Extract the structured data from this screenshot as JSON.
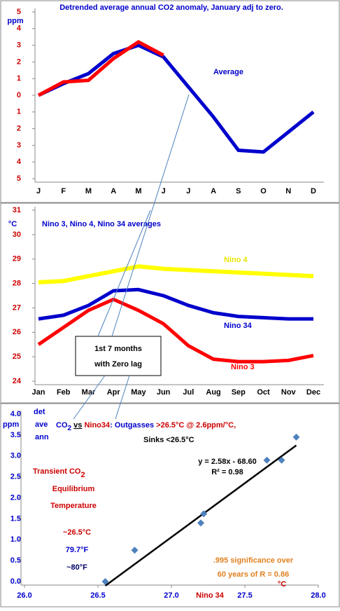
{
  "chart_data": [
    {
      "type": "line",
      "title": "Detrended average annual CO2 anomaly, January adj to zero.",
      "y_label": "ppm",
      "categories": [
        "J",
        "F",
        "M",
        "A",
        "M",
        "J",
        "J",
        "A",
        "S",
        "O",
        "N",
        "D"
      ],
      "ylim": [
        -5,
        5
      ],
      "yticks": [
        {
          "value": -5,
          "label": "5"
        },
        {
          "value": -4,
          "label": "4"
        },
        {
          "value": -3,
          "label": "3"
        },
        {
          "value": -2,
          "label": "2"
        },
        {
          "value": -1,
          "label": "1"
        },
        0,
        1,
        2,
        3,
        4,
        5
      ],
      "series": [
        {
          "name": "Average",
          "color": "#0000cc",
          "values": [
            0,
            0.7,
            1.3,
            2.5,
            3.0,
            2.3,
            0.5,
            -1.3,
            -3.3,
            -3.4,
            -2.2,
            -1.0
          ]
        },
        {
          "color": "#ff0000",
          "values": [
            0,
            0.8,
            0.9,
            2.2,
            3.2,
            2.4,
            null,
            null,
            null,
            null,
            null,
            null
          ]
        }
      ]
    },
    {
      "type": "line",
      "title": "Nino 3, Nino 4, Nino 34 averages",
      "y_label": "°C",
      "categories": [
        "Jan",
        "Feb",
        "Mar",
        "Apr",
        "May",
        "Jun",
        "Jul",
        "Aug",
        "Sep",
        "Oct",
        "Nov",
        "Dec"
      ],
      "ylim": [
        24,
        31
      ],
      "yticks": [
        24,
        25,
        26,
        27,
        28,
        29,
        30,
        31
      ],
      "series": [
        {
          "name": "Nino 4",
          "color": "#ffff00",
          "values": [
            28.05,
            28.1,
            28.3,
            28.5,
            28.7,
            28.6,
            28.55,
            28.5,
            28.45,
            28.4,
            28.35,
            28.3
          ]
        },
        {
          "name": "Nino 34",
          "color": "#0000cc",
          "values": [
            26.55,
            26.7,
            27.1,
            27.7,
            27.75,
            27.5,
            27.1,
            26.8,
            26.65,
            26.6,
            26.55,
            26.55
          ]
        },
        {
          "name": "Nino 3",
          "color": "#ff0000",
          "values": [
            25.5,
            26.2,
            26.9,
            27.35,
            26.9,
            26.35,
            25.45,
            24.9,
            24.8,
            24.8,
            24.85,
            25.05
          ]
        }
      ],
      "note": [
        "1st 7 months",
        "with Zero lag"
      ]
    },
    {
      "type": "scatter",
      "title_parts": [
        "CO",
        "2",
        " ",
        "vs",
        " ",
        "Nino34",
        ": Outgasses ",
        ">26.5°C @ 2.6ppm/°C,"
      ],
      "subtitle": "Sinks <26.5°C",
      "y_label": [
        "ppm",
        "det",
        "ave",
        "ann"
      ],
      "x_label": "Nino 34",
      "x_unit": "°C",
      "xlim": [
        26,
        28
      ],
      "xticks": [
        {
          "value": 26,
          "label": "26.0"
        },
        {
          "value": 26.5,
          "label": "26.5"
        },
        {
          "value": 27,
          "label": "27.0"
        },
        {
          "value": 27.5,
          "label": "27.5"
        },
        {
          "value": 28,
          "label": "28.0"
        }
      ],
      "ylim": [
        0,
        4
      ],
      "yticks": [
        {
          "value": 0,
          "label": "0.0"
        },
        0.5,
        {
          "value": 1,
          "label": "1.0"
        },
        1.5,
        {
          "value": 2,
          "label": "2.0"
        },
        2.5,
        {
          "value": 3,
          "label": "3.0"
        },
        3.5,
        {
          "value": 4,
          "label": "4.0"
        }
      ],
      "color": "#4f81bd",
      "x": [
        26.55,
        26.75,
        27.2,
        27.22,
        27.65,
        27.75,
        27.85
      ],
      "values": [
        0.0,
        0.75,
        1.4,
        1.62,
        2.9,
        2.9,
        3.45
      ],
      "trendline": {
        "slope": 2.58,
        "intercept": -68.6,
        "equation": "y = 2.58x - 68.60",
        "r2": "R² = 0.98"
      },
      "left_notes": [
        "Transient  CO",
        "2",
        "Equilibrium",
        "Temperature",
        "~26.5°C",
        "79.7°F",
        "~80°F"
      ],
      "box_note": [
        ".995 significance over",
        "60 years of R = 0.86"
      ]
    }
  ]
}
